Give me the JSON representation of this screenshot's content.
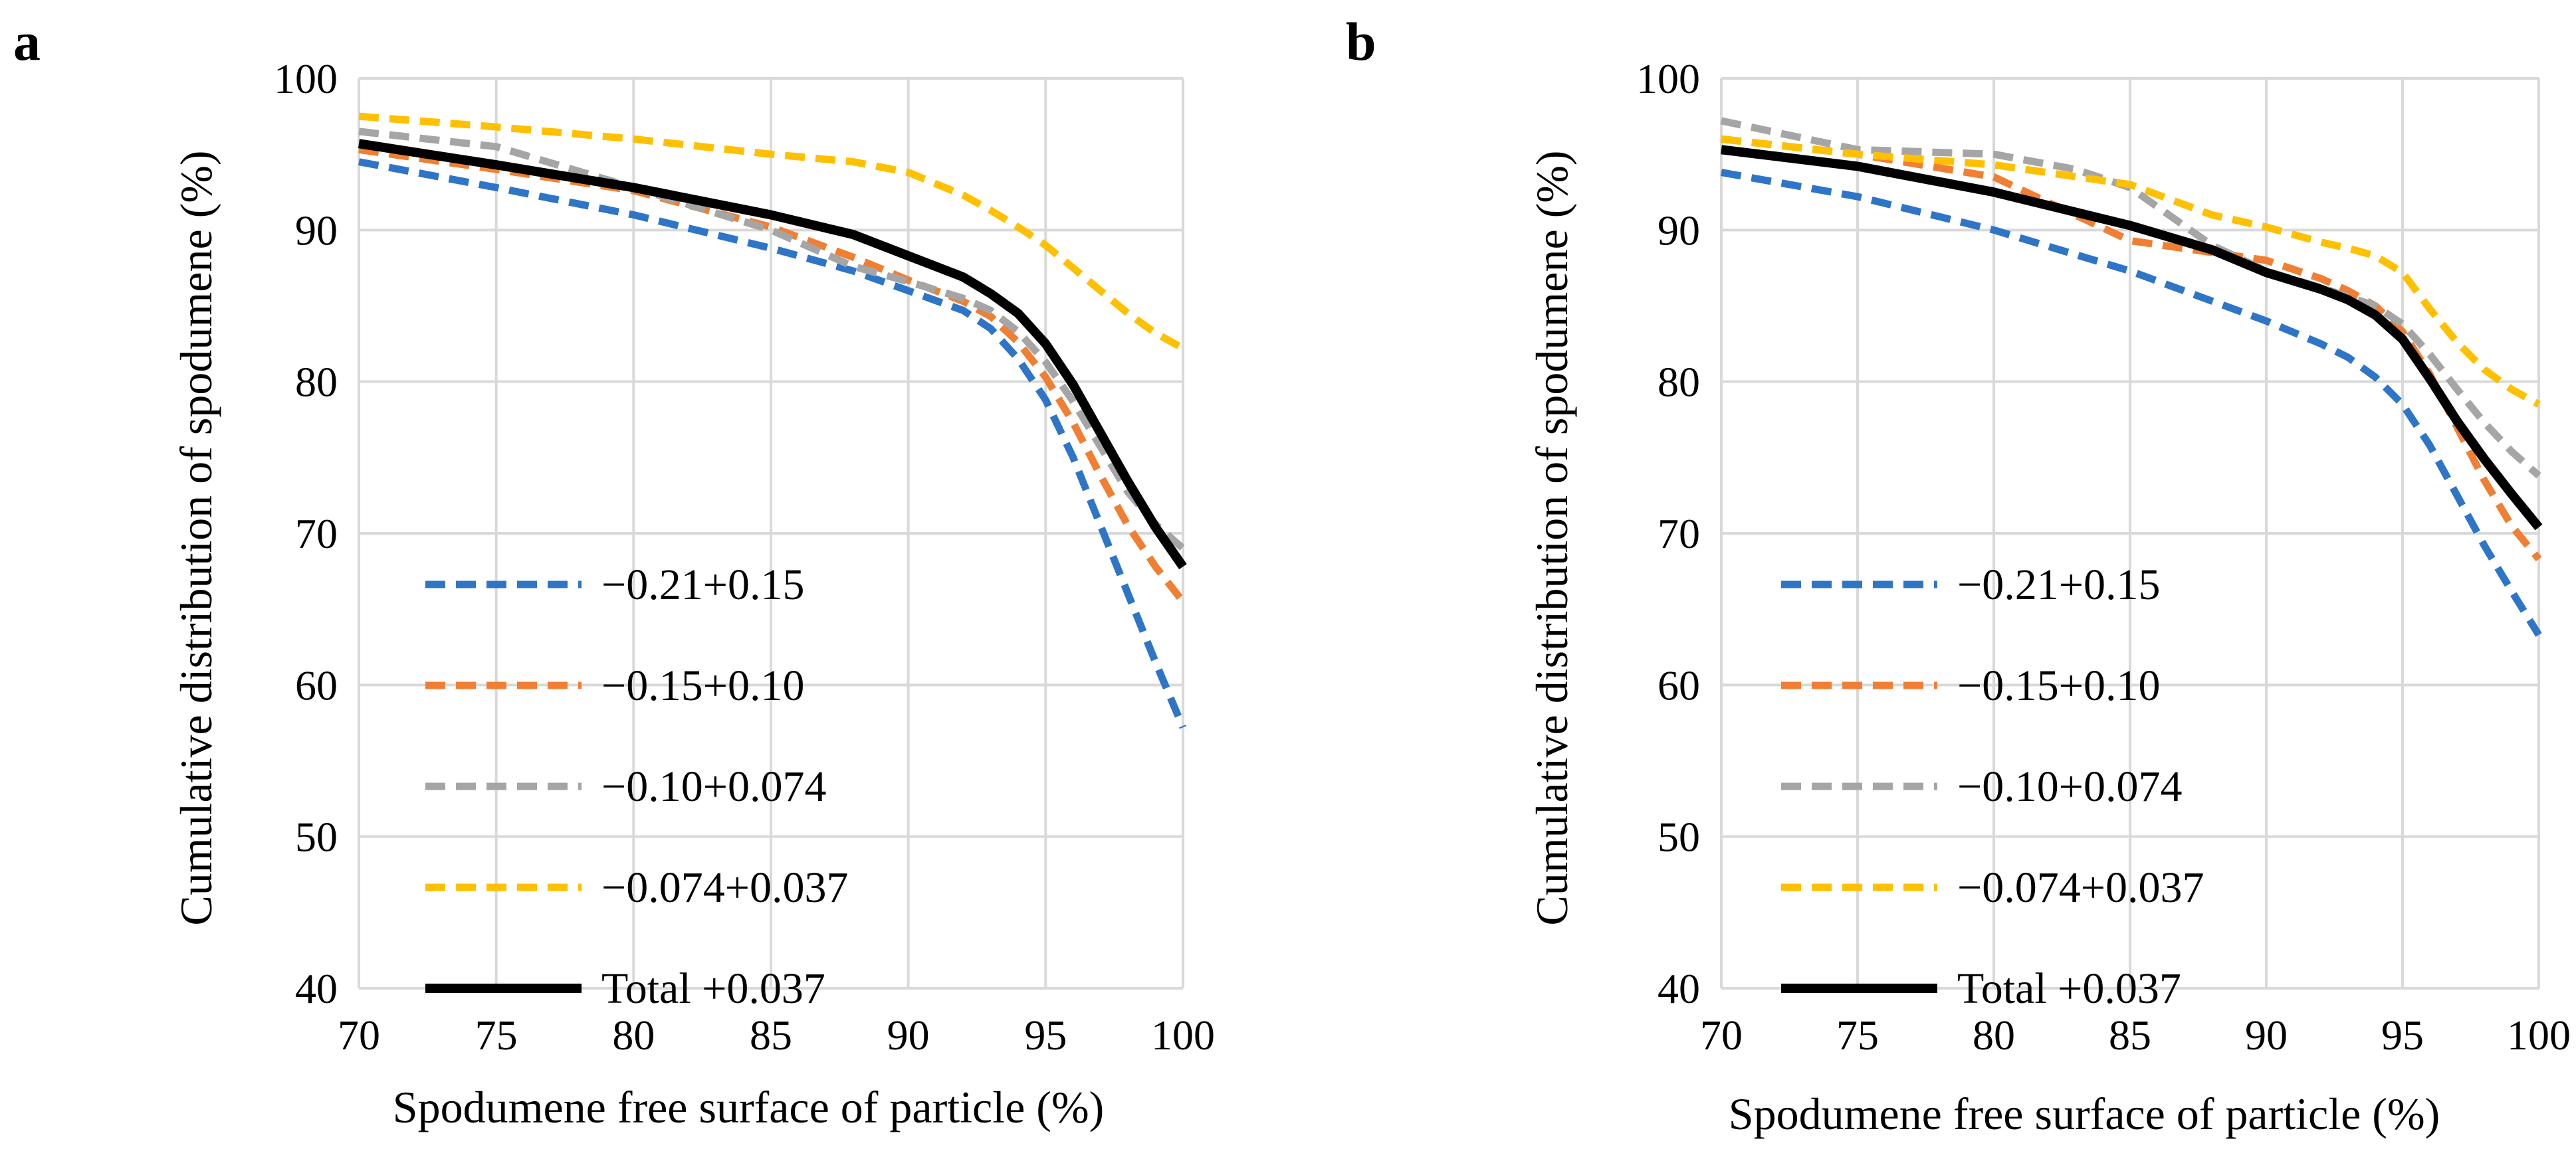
{
  "chart_data": [
    {
      "type": "line",
      "panel_label": "a",
      "title": "",
      "xlabel": "Spodumene free surface of particle (%)",
      "ylabel": "Cumulative distribution of spodumene (%)",
      "xlim": [
        70,
        100
      ],
      "ylim": [
        40,
        100
      ],
      "xticks": [
        70,
        75,
        80,
        85,
        90,
        95,
        100
      ],
      "yticks": [
        40,
        50,
        60,
        70,
        80,
        90,
        100
      ],
      "grid": true,
      "legend_position": "lower-left",
      "series": [
        {
          "name": "−0.21+0.15",
          "color": "#2e75c8",
          "dash": true,
          "x": [
            70,
            75,
            80,
            85,
            88,
            90,
            92,
            93,
            94,
            95,
            96,
            97,
            98,
            99,
            100
          ],
          "y": [
            94.5,
            92.8,
            91,
            88.8,
            87.3,
            86,
            84.7,
            83.5,
            81.5,
            78.8,
            75,
            70.5,
            66,
            61.5,
            57.2
          ]
        },
        {
          "name": "−0.15+0.10",
          "color": "#f07f33",
          "dash": true,
          "x": [
            70,
            75,
            80,
            85,
            88,
            90,
            92,
            93,
            94,
            95,
            96,
            97,
            98,
            99,
            100
          ],
          "y": [
            95.3,
            94,
            92.6,
            90.2,
            88.2,
            86.7,
            85.3,
            84.3,
            82.6,
            80.3,
            77.3,
            73.8,
            70.5,
            67.8,
            65.5
          ]
        },
        {
          "name": "−0.10+0.074",
          "color": "#a5a5a5",
          "dash": true,
          "x": [
            70,
            75,
            80,
            85,
            88,
            90,
            92,
            93,
            94,
            95,
            96,
            97,
            98,
            99,
            100
          ],
          "y": [
            96.5,
            95.5,
            92.8,
            90,
            87.6,
            86.6,
            85.5,
            84.7,
            83.3,
            81.3,
            78.7,
            75.7,
            72.7,
            70.6,
            69
          ]
        },
        {
          "name": "−0.074+0.037",
          "color": "#ffc000",
          "dash": true,
          "x": [
            70,
            75,
            80,
            85,
            88,
            90,
            92,
            93,
            94,
            95,
            96,
            97,
            98,
            99,
            100
          ],
          "y": [
            97.5,
            96.8,
            96,
            95,
            94.5,
            93.8,
            92.3,
            91.3,
            90.2,
            89,
            87.5,
            86,
            84.5,
            83.2,
            82.2
          ]
        },
        {
          "name": "Total +0.037",
          "color": "#000000",
          "dash": false,
          "x": [
            70,
            75,
            80,
            85,
            88,
            90,
            92,
            93,
            94,
            95,
            96,
            97,
            98,
            99,
            100
          ],
          "y": [
            95.7,
            94.3,
            92.8,
            91,
            89.7,
            88.3,
            86.9,
            85.8,
            84.5,
            82.5,
            79.8,
            76.6,
            73.4,
            70.4,
            67.8
          ]
        }
      ]
    },
    {
      "type": "line",
      "panel_label": "b",
      "title": "",
      "xlabel": "Spodumene free surface of particle (%)",
      "ylabel": "Cumulative distribution of spodumene (%)",
      "xlim": [
        70,
        100
      ],
      "ylim": [
        40,
        100
      ],
      "xticks": [
        70,
        75,
        80,
        85,
        90,
        95,
        100
      ],
      "yticks": [
        40,
        50,
        60,
        70,
        80,
        90,
        100
      ],
      "grid": true,
      "legend_position": "lower-left",
      "series": [
        {
          "name": "−0.21+0.15",
          "color": "#2e75c8",
          "dash": true,
          "x": [
            70,
            75,
            80,
            85,
            90,
            92,
            93,
            94,
            95,
            96,
            97,
            98,
            99,
            100
          ],
          "y": [
            93.8,
            92.2,
            90,
            87.3,
            84,
            82.5,
            81.6,
            80.3,
            78.5,
            75.8,
            72.5,
            69.2,
            66.2,
            63.3
          ]
        },
        {
          "name": "−0.15+0.10",
          "color": "#f07f33",
          "dash": true,
          "x": [
            70,
            75,
            80,
            85,
            90,
            92,
            93,
            94,
            95,
            96,
            97,
            98,
            99,
            100
          ],
          "y": [
            96,
            95,
            93.5,
            89.3,
            88,
            86.8,
            86,
            85,
            83.3,
            80.5,
            77,
            73.5,
            70.5,
            68.3
          ]
        },
        {
          "name": "−0.10+0.074",
          "color": "#a5a5a5",
          "dash": true,
          "x": [
            70,
            75,
            80,
            83,
            85,
            88,
            90,
            92,
            93,
            94,
            95,
            96,
            97,
            98,
            99,
            100
          ],
          "y": [
            97.2,
            95.3,
            95,
            94,
            92.8,
            89,
            87.3,
            86.2,
            85.6,
            85,
            83.8,
            81.8,
            79.5,
            77.3,
            75.4,
            73.8
          ]
        },
        {
          "name": "−0.074+0.037",
          "color": "#ffc000",
          "dash": true,
          "x": [
            70,
            75,
            80,
            85,
            88,
            90,
            92,
            93,
            94,
            95,
            96,
            97,
            98,
            99,
            100
          ],
          "y": [
            96,
            95,
            94.3,
            93,
            91,
            90.2,
            89.2,
            88.8,
            88.3,
            87.2,
            84.8,
            82.6,
            80.8,
            79.5,
            78.5
          ]
        },
        {
          "name": "Total +0.037",
          "color": "#000000",
          "dash": false,
          "x": [
            70,
            75,
            80,
            85,
            88,
            90,
            92,
            93,
            94,
            95,
            96,
            97,
            98,
            99,
            100
          ],
          "y": [
            95.3,
            94.2,
            92.5,
            90.3,
            88.7,
            87.2,
            86.1,
            85.4,
            84.4,
            82.8,
            80.2,
            77.4,
            74.9,
            72.6,
            70.4
          ]
        }
      ]
    }
  ]
}
